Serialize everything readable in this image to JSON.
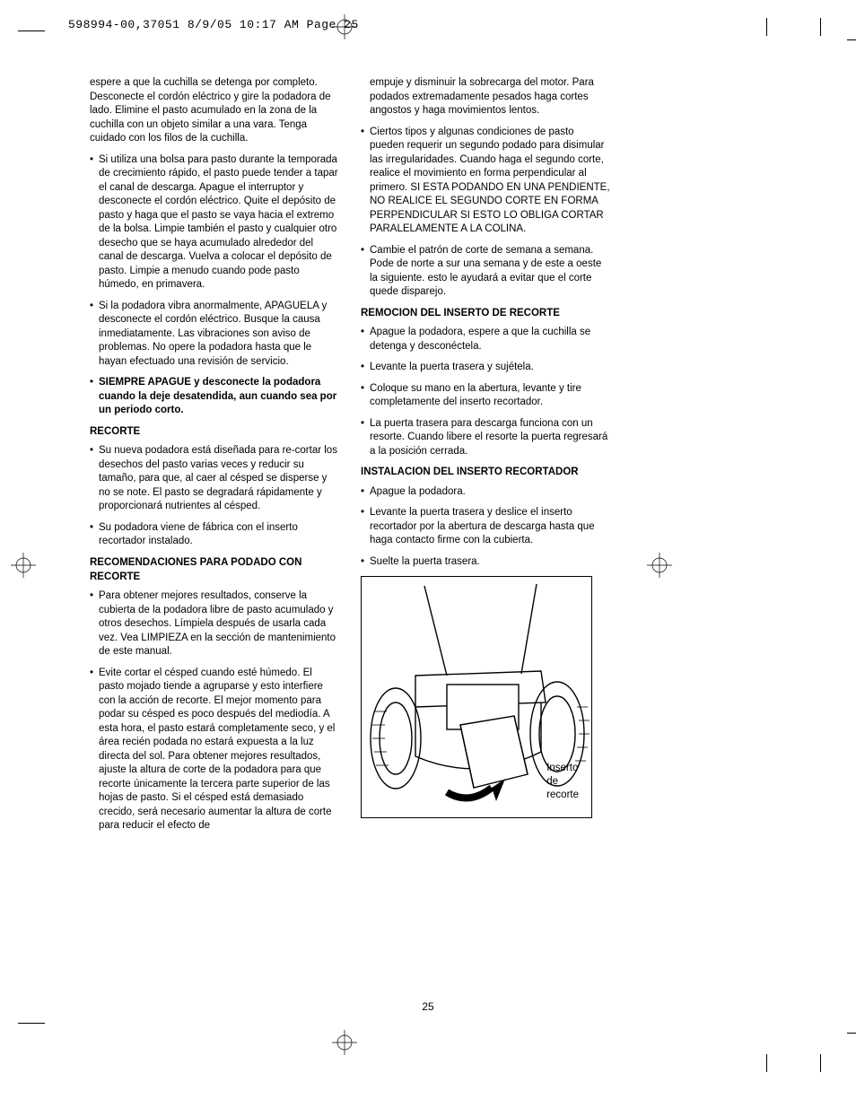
{
  "header": "598994-00,37051  8/9/05  10:17 AM  Page 25",
  "page_number": "25",
  "left_col": {
    "p1": "espere a que la cuchilla se detenga por completo. Desconecte el cordón eléctrico y gire la podadora de lado. Elimine el pasto acumulado en la zona de la cuchilla con un objeto similar a una vara. Tenga cuidado con los filos de la cuchilla.",
    "b1": "Si utiliza una bolsa para pasto durante la temporada de crecimiento rápido, el pasto puede tender a tapar el canal de descarga. Apague el interruptor y desconecte el cordón eléctrico. Quite el depósito de pasto y haga que el pasto se vaya hacia el extremo de la bolsa. Limpie también el pasto y cualquier otro desecho que se haya acumulado alrededor del canal de descarga. Vuelva a colocar el depósito de pasto. Limpie a menudo cuando pode pasto húmedo, en primavera.",
    "b2": "Si la podadora vibra anormalmente, APAGUELA y desconecte el cordón eléctrico. Busque la causa inmediatamente. Las vibraciones son aviso de problemas. No opere la podadora hasta que le hayan efectuado una revisión de servicio.",
    "b3": "SIEMPRE APAGUE y desconecte la podadora cuando la deje desatendida, aun cuando sea por un periodo corto.",
    "h1": "RECORTE",
    "b4": "Su nueva podadora está diseñada para re-cortar los desechos del pasto varias veces y reducir su tamaño, para que, al caer al césped se disperse y no se note. El pasto se degradará rápidamente y proporcionará nutrientes al césped.",
    "b5": "Su podadora viene de fábrica con el inserto recortador instalado.",
    "h2": "RECOMENDACIONES PARA PODADO CON RECORTE",
    "b6": "Para obtener mejores resultados, conserve la cubierta de la podadora libre de pasto acumulado y otros desechos. Límpiela después de usarla cada vez. Vea LIMPIEZA en la sección de mantenimiento de este manual.",
    "b7": "Evite cortar el césped cuando esté húmedo. El pasto mojado tiende a agruparse y esto interfiere con la acción de recorte. El mejor momento para podar su césped es poco después del mediodía. A esta hora, el pasto estará completamente seco, y el área recién podada no estará expuesta a la luz directa del sol. Para obtener mejores resultados, ajuste la altura de corte de la podadora para que recorte únicamente la tercera parte superior de las hojas de pasto. Si el césped está demasiado crecido, será necesario aumentar la altura de corte para reducir el efecto de"
  },
  "right_col": {
    "p1": "empuje y disminuir la sobrecarga del motor. Para podados extremadamente pesados haga cortes angostos y haga movimientos lentos.",
    "b1": "Ciertos tipos y algunas condiciones de pasto pueden requerir un segundo podado para disimular las irregularidades. Cuando haga el segundo corte, realice el movimiento en forma perpendicular al primero. SI ESTA PODANDO EN UNA PENDIENTE, NO REALICE EL SEGUNDO CORTE EN FORMA PERPENDICULAR SI ESTO LO OBLIGA CORTAR PARALELAMENTE A LA COLINA.",
    "b2": "Cambie el patrón de corte de semana a semana. Pode de norte a sur una semana y de este a oeste la siguiente. esto le ayudará a evitar que el corte quede disparejo.",
    "h1": "REMOCION DEL INSERTO DE RECORTE",
    "b3": "Apague la podadora, espere a que la cuchilla se detenga y desconéctela.",
    "b4": "Levante la puerta trasera y sujétela.",
    "b5": "Coloque su mano en la abertura, levante y tire completamente del inserto recortador.",
    "b6": "La puerta trasera para descarga funciona con un resorte. Cuando libere el resorte la puerta regresará a la posición cerrada.",
    "h2": "INSTALACION DEL INSERTO RECORTADOR",
    "b7": "Apague la podadora.",
    "b8": "Levante la puerta trasera y deslice el inserto recortador por la abertura de descarga hasta que haga contacto firme con la cubierta.",
    "b9": "Suelte la puerta trasera."
  },
  "figure_label": "Inserto de recorte"
}
